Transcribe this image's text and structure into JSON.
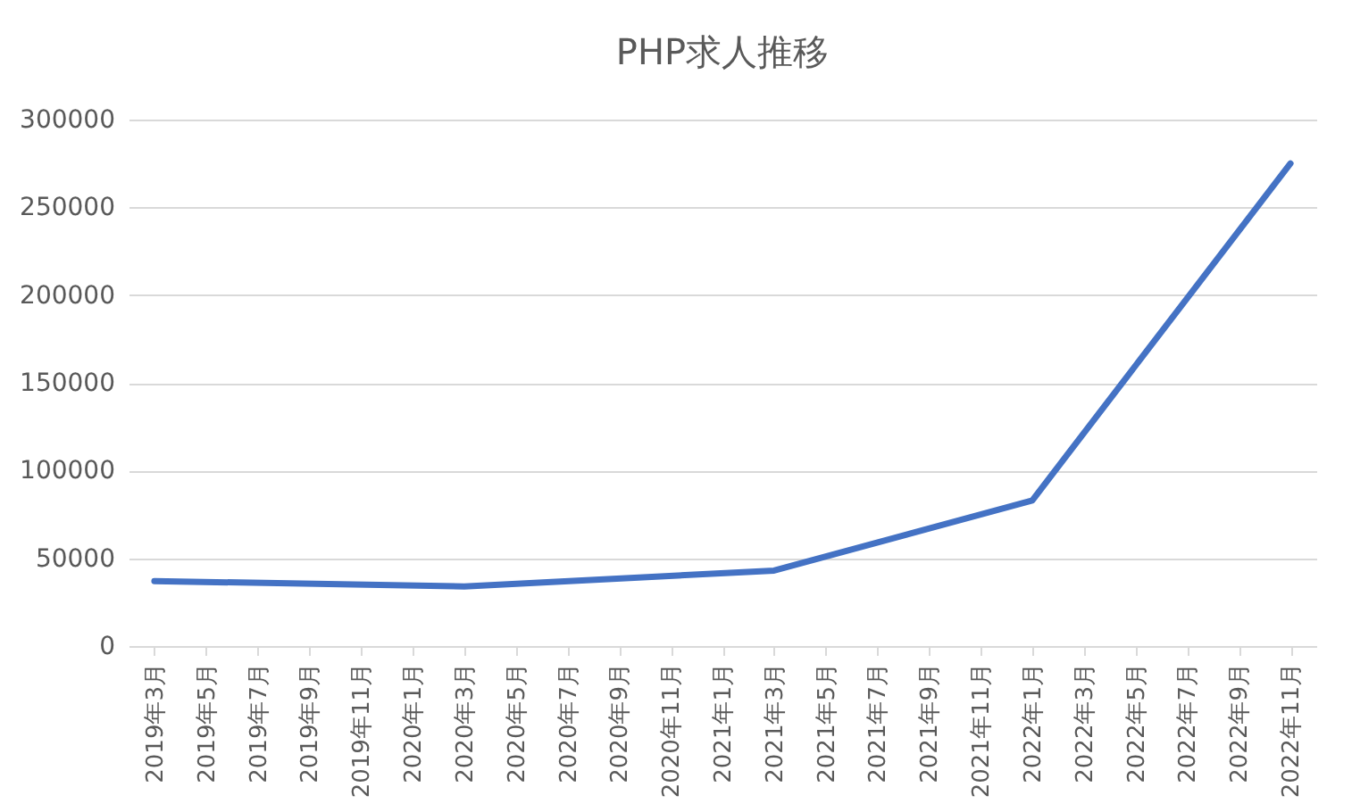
{
  "chart_data": {
    "type": "line",
    "title": "PHP求人推移",
    "categories": [
      "2019年3月",
      "2019年5月",
      "2019年7月",
      "2019年9月",
      "2019年11月",
      "2020年1月",
      "2020年3月",
      "2020年5月",
      "2020年7月",
      "2020年9月",
      "2020年11月",
      "2021年1月",
      "2021年3月",
      "2021年5月",
      "2021年7月",
      "2021年9月",
      "2021年11月",
      "2022年1月",
      "2022年3月",
      "2022年5月",
      "2022年7月",
      "2022年9月",
      "2022年11月"
    ],
    "series": [
      {
        "color": "#4472c4",
        "values": [
          37000,
          null,
          null,
          null,
          null,
          null,
          34000,
          null,
          null,
          null,
          null,
          null,
          43000,
          null,
          null,
          null,
          null,
          83000,
          null,
          null,
          null,
          null,
          275000
        ]
      }
    ],
    "ylim": [
      0,
      300000
    ],
    "yticks": [
      0,
      50000,
      100000,
      150000,
      200000,
      250000,
      300000
    ],
    "grid": "y",
    "marker": "none",
    "line_style": "solid"
  }
}
